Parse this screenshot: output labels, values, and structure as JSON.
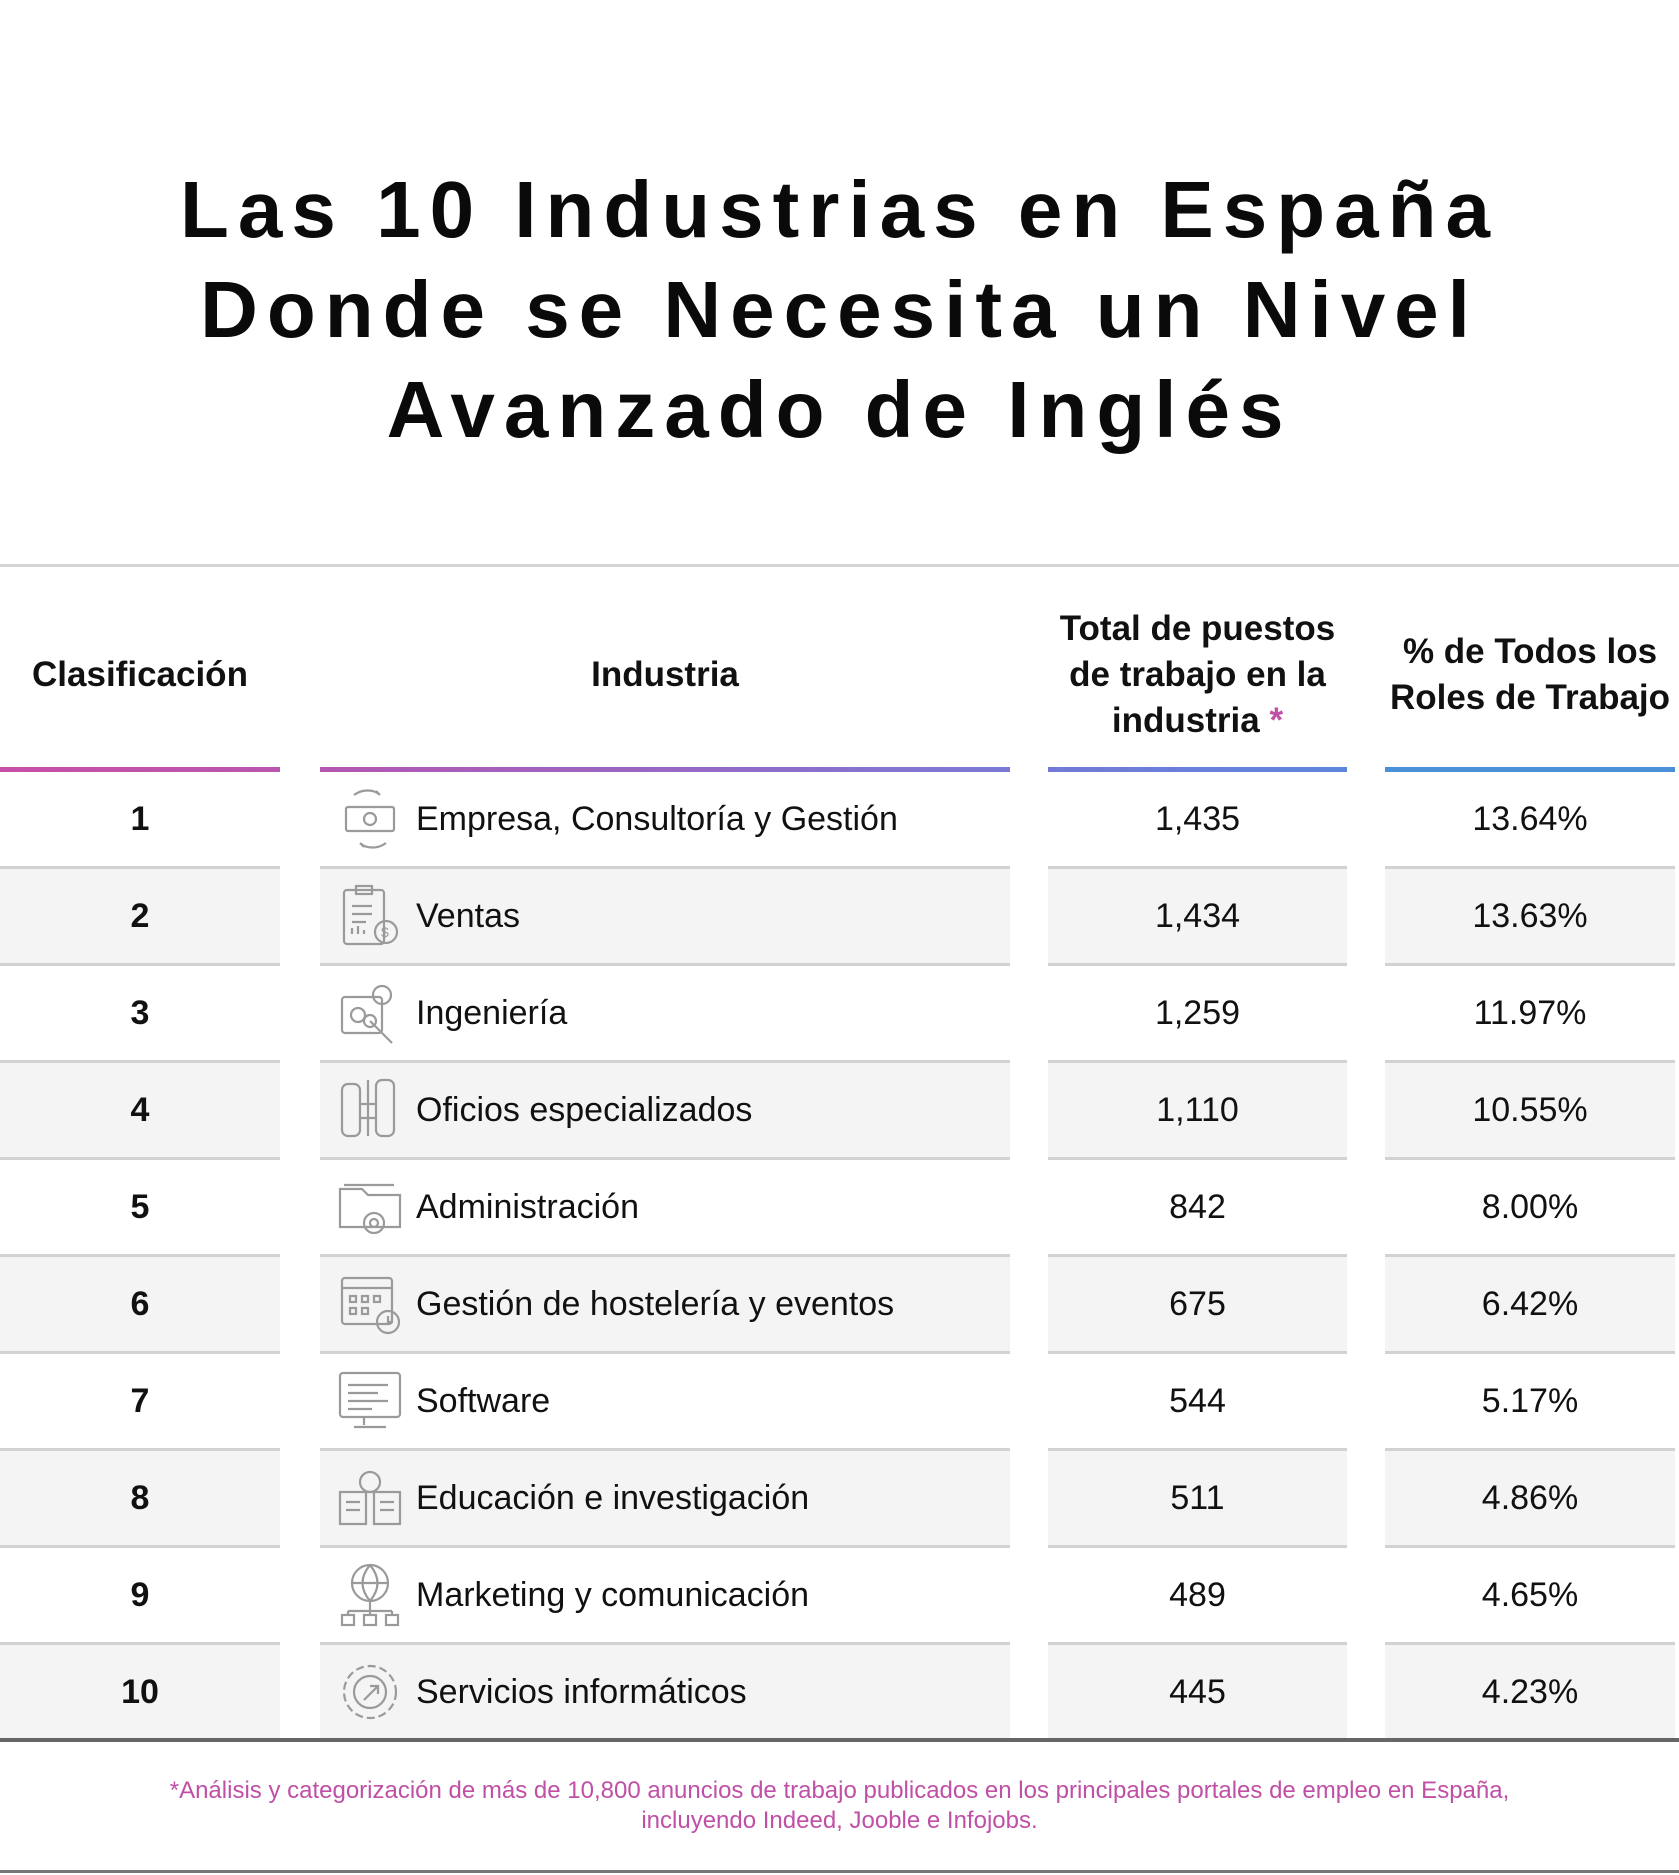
{
  "title": [
    "Las 10 Industrias en España",
    "Donde se Necesita un Nivel",
    "Avanzado de Inglés"
  ],
  "headers": {
    "rank": "Clasificación",
    "industry": "Industria",
    "total": "Total de puestos de trabajo en la industria",
    "total_marker": "*",
    "percent": "% de Todos los Roles de Trabajo"
  },
  "colors": {
    "accent_pink": "#c04fa6",
    "accent_blue": "#4a90d9",
    "row_shade": "#f4f4f4"
  },
  "rows": [
    {
      "rank": "1",
      "industry": "Empresa, Consultoría y Gestión",
      "total": "1,435",
      "percent": "13.64%",
      "icon": "money-exchange-icon"
    },
    {
      "rank": "2",
      "industry": "Ventas",
      "total": "1,434",
      "percent": "13.63%",
      "icon": "clipboard-dollar-icon"
    },
    {
      "rank": "3",
      "industry": "Ingeniería",
      "total": "1,259",
      "percent": "11.97%",
      "icon": "gear-wrench-icon"
    },
    {
      "rank": "4",
      "industry": "Oficios especializados",
      "total": "1,110",
      "percent": "10.55%",
      "icon": "tools-icon"
    },
    {
      "rank": "5",
      "industry": "Administración",
      "total": "842",
      "percent": "8.00%",
      "icon": "folder-gear-icon"
    },
    {
      "rank": "6",
      "industry": "Gestión de hostelería y eventos",
      "total": "675",
      "percent": "6.42%",
      "icon": "calendar-clock-icon"
    },
    {
      "rank": "7",
      "industry": "Software",
      "total": "544",
      "percent": "5.17%",
      "icon": "monitor-code-icon"
    },
    {
      "rank": "8",
      "industry": "Educación e investigación",
      "total": "511",
      "percent": "4.86%",
      "icon": "book-lightbulb-icon"
    },
    {
      "rank": "9",
      "industry": "Marketing y comunicación",
      "total": "489",
      "percent": "4.65%",
      "icon": "globe-network-icon"
    },
    {
      "rank": "10",
      "industry": "Servicios informáticos",
      "total": "445",
      "percent": "4.23%",
      "icon": "gear-cursor-icon"
    }
  ],
  "footnote": [
    "*Análisis y categorización de más de 10,800 anuncios de trabajo publicados en los principales portales de empleo en España,",
    "incluyendo Indeed, Jooble e Infojobs."
  ]
}
